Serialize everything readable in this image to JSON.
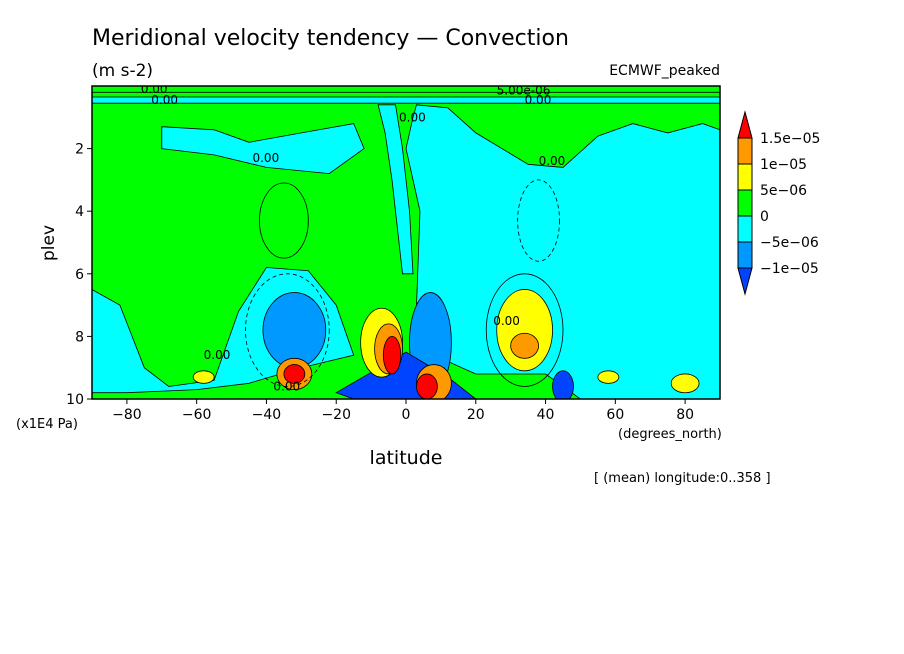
{
  "chart_data": {
    "type": "heatmap",
    "title": "Meridional velocity tendency — Convection",
    "units": "(m s-2)",
    "model_label": "ECMWF_peaked",
    "xlabel": "latitude",
    "x_units": "(degrees_north)",
    "ylabel": "plev",
    "y_units": "(x1E4 Pa)",
    "footer": "[ (mean) longitude:0..358 ]",
    "xlim": [
      -90,
      90
    ],
    "ylim": [
      10,
      0
    ],
    "y_axis_inverted": true,
    "x_ticks": [
      -80,
      -60,
      -40,
      -20,
      0,
      20,
      40,
      60,
      80
    ],
    "x_tick_labels": [
      "−80",
      "−60",
      "−40",
      "−20",
      "0",
      "20",
      "40",
      "60",
      "80"
    ],
    "y_ticks": [
      2,
      4,
      6,
      8,
      10
    ],
    "y_tick_labels": [
      "2",
      "4",
      "6",
      "8",
      "10"
    ],
    "colorbar": {
      "labels": [
        "1.5e−05",
        "1e−05",
        "5e−06",
        "0",
        "−5e−06",
        "−1e−05"
      ],
      "colors": [
        "#ff0000",
        "#ff9900",
        "#ffff00",
        "#00ff00",
        "#00ffff",
        "#0099ff",
        "#0044ff"
      ]
    },
    "contour_labels": [
      "0.00",
      "0.00",
      "0.00",
      "0.00",
      "0.00",
      "0.00",
      "0.00",
      "0.00",
      "5.00e-06",
      "0.00"
    ],
    "colors": {
      "background": "#ffffff",
      "zero_region": "#00ff00",
      "weak_negative": "#00ffff",
      "moderate_negative": "#0099ff",
      "strong_negative": "#0044ff",
      "weak_positive": "#ffff00",
      "moderate_positive": "#ff9900",
      "strong_positive": "#ff0000"
    }
  }
}
